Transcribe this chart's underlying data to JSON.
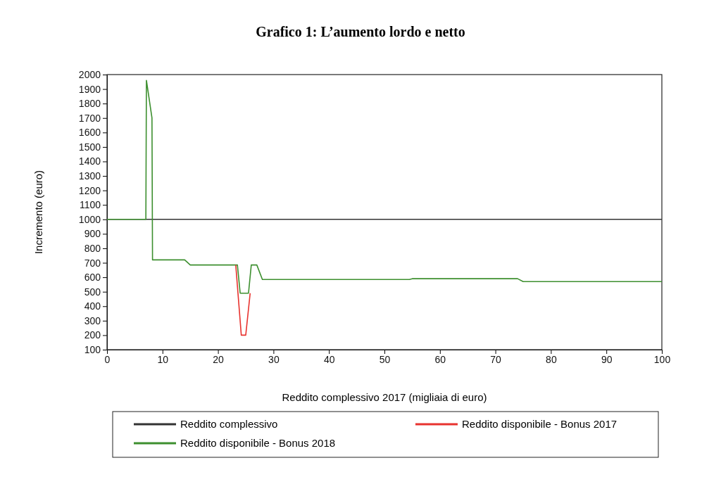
{
  "chart_data": {
    "type": "line",
    "title": "Grafico 1: L’aumento lordo e netto",
    "xlabel": "Reddito complessivo 2017 (migliaia di euro)",
    "ylabel": "Incremento (euro)",
    "xlim": [
      0,
      100
    ],
    "xticks": [
      0,
      10,
      20,
      30,
      40,
      50,
      60,
      70,
      80,
      90,
      100
    ],
    "ylim": [
      100,
      2000
    ],
    "yticks": [
      100,
      200,
      300,
      400,
      500,
      600,
      700,
      800,
      900,
      1000,
      1100,
      1200,
      1300,
      1400,
      1500,
      1600,
      1700,
      1800,
      1900,
      2000
    ],
    "grid": false,
    "legend": "bottom",
    "line_style": "solid",
    "marker": "none",
    "series": [
      {
        "name": "Reddito complessivo",
        "color": "#333333",
        "x": [
          0,
          100
        ],
        "values": [
          1000,
          1000
        ]
      },
      {
        "name": "Reddito disponibile - Bonus 2018",
        "color": "#3d8f2f",
        "x": [
          0,
          7,
          7.1,
          8.1,
          8.2,
          14,
          15,
          23.5,
          24,
          25.5,
          26,
          27,
          28,
          54.5,
          55,
          74,
          75,
          100
        ],
        "values": [
          1000,
          1000,
          1960,
          1700,
          720,
          720,
          685,
          685,
          490,
          490,
          685,
          685,
          585,
          585,
          590,
          590,
          570,
          570
        ]
      },
      {
        "name": "Reddito disponibile - Bonus 2017",
        "color": "#e8332f",
        "x": [
          23.2,
          24.2,
          25,
          25.8
        ],
        "values": [
          685,
          200,
          200,
          490
        ]
      }
    ]
  }
}
